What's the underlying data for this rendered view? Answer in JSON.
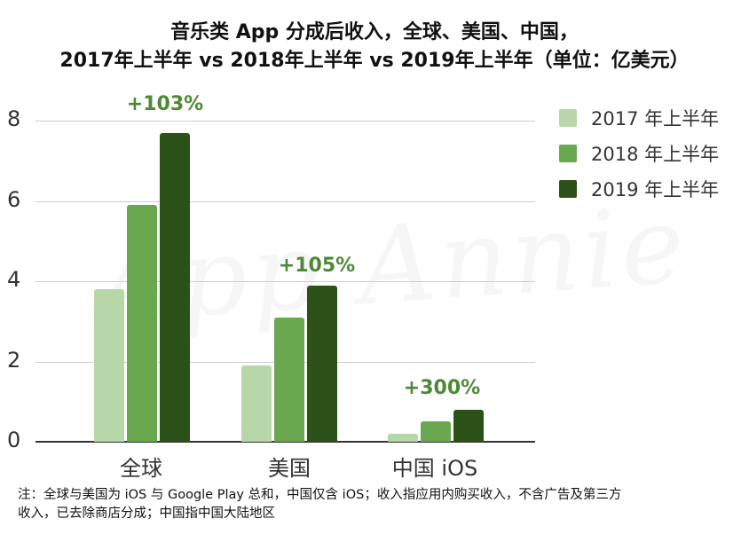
{
  "title": {
    "line1": "音乐类 App 分成后收入，全球、美国、中国，",
    "line2": "2017年上半年 vs 2018年上半年 vs 2019年上半年（单位：亿美元）"
  },
  "watermark": "App Annie",
  "y_axis": {
    "ticks": [
      "0",
      "2",
      "4",
      "6",
      "8"
    ]
  },
  "x_axis": {
    "categories": [
      "全球",
      "美国",
      "中国 iOS"
    ]
  },
  "legend": [
    {
      "label": "2017 年上半年",
      "color": "#b7d7a8"
    },
    {
      "label": "2018 年上半年",
      "color": "#6aa84f"
    },
    {
      "label": "2019 年上半年",
      "color": "#2c5219"
    }
  ],
  "growth_labels": [
    "+103%",
    "+105%",
    "+300%"
  ],
  "note": {
    "line1": "注：全球与美国为 iOS 与 Google Play 总和，中国仅含 iOS；收入指应用内购买收入，不含广告及第三方",
    "line2": "收入，已去除商店分成；中国指中国大陆地区"
  },
  "chart_data": {
    "type": "bar",
    "title": "音乐类 App 分成后收入，全球、美国、中国，2017年上半年 vs 2018年上半年 vs 2019年上半年（单位：亿美元）",
    "xlabel": "",
    "ylabel": "亿美元",
    "ylim": [
      0,
      8
    ],
    "yticks": [
      0,
      2,
      4,
      6,
      8
    ],
    "grid": true,
    "legend_position": "right",
    "categories": [
      "全球",
      "美国",
      "中国 iOS"
    ],
    "series": [
      {
        "name": "2017 年上半年",
        "color": "#b7d7a8",
        "values": [
          3.8,
          1.9,
          0.2
        ]
      },
      {
        "name": "2018 年上半年",
        "color": "#6aa84f",
        "values": [
          5.9,
          3.1,
          0.5
        ]
      },
      {
        "name": "2019 年上半年",
        "color": "#2c5219",
        "values": [
          7.7,
          3.9,
          0.8
        ]
      }
    ],
    "annotations": [
      {
        "category": "全球",
        "text": "+103%"
      },
      {
        "category": "美国",
        "text": "+105%"
      },
      {
        "category": "中国 iOS",
        "text": "+300%"
      }
    ]
  }
}
